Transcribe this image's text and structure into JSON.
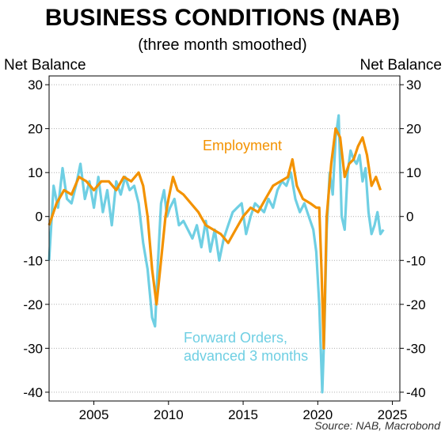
{
  "title": "BUSINESS CONDITIONS (NAB)",
  "subtitle": "(three month smoothed)",
  "unit_left": "Net Balance",
  "unit_right": "Net Balance",
  "source": "Source: NAB, Macrobond",
  "annotations": {
    "employment": "Employment",
    "forward_orders_line1": "Forward Orders,",
    "forward_orders_line2": "advanced 3 months"
  },
  "colors": {
    "employment": "#f39200",
    "forward_orders": "#6fcfe3",
    "grid": "#b0b0b0"
  },
  "chart_data": {
    "type": "line",
    "title": "BUSINESS CONDITIONS (NAB)",
    "subtitle": "(three month smoothed)",
    "ylabel": "Net Balance",
    "y2label": "Net Balance",
    "xlim": [
      2002,
      2025.5
    ],
    "ylim": [
      -42,
      32
    ],
    "xticks": [
      "2005",
      "2010",
      "2015",
      "2020",
      "2025"
    ],
    "xtick_values": [
      2005,
      2010,
      2015,
      2020,
      2025
    ],
    "yticks": [
      "30",
      "20",
      "10",
      "0",
      "-10",
      "-20",
      "-30",
      "-40"
    ],
    "ytick_values": [
      30,
      20,
      10,
      0,
      -10,
      -20,
      -30,
      -40
    ],
    "grid": "horizontal dotted",
    "series": [
      {
        "name": "Employment",
        "color": "#f39200",
        "x": [
          2002.0,
          2002.5,
          2003.0,
          2003.5,
          2004.0,
          2004.5,
          2005.0,
          2005.5,
          2006.0,
          2006.5,
          2007.0,
          2007.5,
          2008.0,
          2008.3,
          2008.6,
          2008.9,
          2009.2,
          2009.5,
          2009.8,
          2010.0,
          2010.3,
          2010.6,
          2011.0,
          2011.5,
          2012.0,
          2012.5,
          2013.0,
          2013.5,
          2014.0,
          2014.5,
          2015.0,
          2015.5,
          2016.0,
          2016.5,
          2017.0,
          2017.5,
          2018.0,
          2018.3,
          2018.6,
          2019.0,
          2019.5,
          2019.9,
          2020.1,
          2020.25,
          2020.4,
          2020.6,
          2020.9,
          2021.2,
          2021.5,
          2021.8,
          2022.1,
          2022.4,
          2022.7,
          2023.0,
          2023.3,
          2023.6,
          2023.9,
          2024.2
        ],
        "values": [
          -2,
          3,
          6,
          5,
          9,
          8,
          6,
          8,
          8,
          6,
          9,
          8,
          10,
          7,
          0,
          -12,
          -20,
          -10,
          0,
          4,
          9,
          6,
          5,
          3,
          1,
          -2,
          -3,
          -4,
          -6,
          -3,
          0,
          2,
          1,
          4,
          7,
          8,
          9,
          13,
          7,
          4,
          3,
          2,
          2,
          -12,
          -30,
          0,
          12,
          20,
          18,
          9,
          12,
          13,
          16,
          18,
          14,
          7,
          9,
          6
        ]
      },
      {
        "name": "Forward Orders, advanced 3 months",
        "color": "#6fcfe3",
        "x": [
          2002.0,
          2002.3,
          2002.6,
          2002.9,
          2003.2,
          2003.5,
          2003.8,
          2004.1,
          2004.4,
          2004.7,
          2005.0,
          2005.3,
          2005.6,
          2005.9,
          2006.2,
          2006.5,
          2006.8,
          2007.1,
          2007.4,
          2007.7,
          2008.0,
          2008.3,
          2008.6,
          2008.9,
          2009.1,
          2009.3,
          2009.5,
          2009.7,
          2009.9,
          2010.1,
          2010.4,
          2010.7,
          2011.0,
          2011.3,
          2011.6,
          2011.9,
          2012.2,
          2012.5,
          2012.8,
          2013.1,
          2013.4,
          2013.7,
          2014.0,
          2014.3,
          2014.6,
          2014.9,
          2015.2,
          2015.5,
          2015.8,
          2016.1,
          2016.4,
          2016.7,
          2017.0,
          2017.3,
          2017.6,
          2017.9,
          2018.2,
          2018.5,
          2018.8,
          2019.1,
          2019.4,
          2019.7,
          2019.9,
          2020.1,
          2020.3,
          2020.45,
          2020.6,
          2020.8,
          2021.0,
          2021.2,
          2021.4,
          2021.6,
          2021.8,
          2022.0,
          2022.2,
          2022.4,
          2022.6,
          2022.8,
          2023.0,
          2023.2,
          2023.4,
          2023.6,
          2023.8,
          2024.0,
          2024.2,
          2024.4
        ],
        "values": [
          -10,
          7,
          2,
          11,
          4,
          3,
          7,
          12,
          4,
          8,
          2,
          9,
          1,
          6,
          -2,
          8,
          5,
          9,
          6,
          7,
          3,
          -6,
          -12,
          -23,
          -25,
          -10,
          3,
          6,
          0,
          2,
          4,
          -2,
          -1,
          -3,
          -5,
          -2,
          -7,
          -1,
          -8,
          -3,
          -10,
          -5,
          -2,
          1,
          2,
          3,
          -4,
          0,
          3,
          2,
          1,
          4,
          2,
          6,
          8,
          7,
          10,
          4,
          1,
          3,
          0,
          -3,
          -8,
          -20,
          -40,
          -25,
          -3,
          10,
          5,
          18,
          23,
          0,
          -3,
          10,
          15,
          13,
          12,
          14,
          8,
          11,
          1,
          -4,
          -2,
          1,
          -4,
          -3
        ]
      }
    ]
  }
}
